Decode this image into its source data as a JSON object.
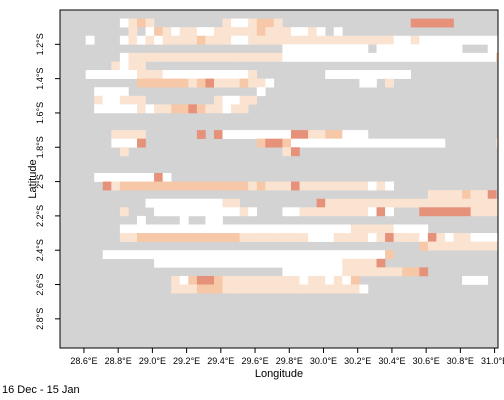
{
  "chart_data": {
    "type": "heatmap",
    "xlabel": "Longitude",
    "ylabel": "Latitude",
    "xlim": [
      28.46,
      31.02
    ],
    "ylim": [
      -2.97,
      -1.0
    ],
    "x_ticks": [
      {
        "value": 28.6,
        "label": "28.6°E"
      },
      {
        "value": 28.8,
        "label": "28.8°E"
      },
      {
        "value": 29.0,
        "label": "29.0°E"
      },
      {
        "value": 29.2,
        "label": "29.2°E"
      },
      {
        "value": 29.4,
        "label": "29.4°E"
      },
      {
        "value": 29.6,
        "label": "29.6°E"
      },
      {
        "value": 29.8,
        "label": "29.8°E"
      },
      {
        "value": 30.0,
        "label": "30.0°E"
      },
      {
        "value": 30.2,
        "label": "30.2°E"
      },
      {
        "value": 30.4,
        "label": "30.4°E"
      },
      {
        "value": 30.6,
        "label": "30.6°E"
      },
      {
        "value": 30.8,
        "label": "30.8°E"
      },
      {
        "value": 31.0,
        "label": "31.0°E"
      }
    ],
    "y_ticks": [
      {
        "value": -1.2,
        "label": "1.2°S"
      },
      {
        "value": -1.4,
        "label": "1.4°S"
      },
      {
        "value": -1.6,
        "label": "1.6°S"
      },
      {
        "value": -1.8,
        "label": "1.8°S"
      },
      {
        "value": -2.0,
        "label": "2°S"
      },
      {
        "value": -2.2,
        "label": "2.2°S"
      },
      {
        "value": -2.4,
        "label": "2.4°S"
      },
      {
        "value": -2.6,
        "label": "2.6°S"
      },
      {
        "value": -2.8,
        "label": "2.8°S"
      }
    ],
    "grid": false,
    "cell_origin": [
      28.46,
      -1.0
    ],
    "cell_size": 0.05,
    "category_colors": {
      "G": "#d3d3d3",
      "W": "#ffffff",
      "L": "#fbe3d1",
      "M": "#f6c8a8",
      "D": "#e6917a"
    },
    "rows": [
      "GGGGGGGGGGGGGGGGGGGGGGGGGGGGGGGGGGGGGGGGGGGGGGGGGGG",
      "GGGGGGGWLMLGGGGGGGGLWWLMMLGGGGGGGGGGGGGGGDDDDDGGGGGGGGGGGGGGGGG",
      "GGGGGGGGLGWMLWLLWWLLLLLMLLLWWLWGWGGGGGGGGGGGGGGGGGGGGGGWLMDDDDDDDDDDG",
      "GGGWGGGWLWLWLLLLMLLLWWLLLLLLLLLLLLLLLLLWWLWWWWWWWWWWWWWWGGGGGGGGGGGGGG",
      "GGGGGGGGGGGGGGGGGGGGGGGGGGWWWWWWWWWWGWWWWWWWWWWGGGWWGGGGGGGGGGGGGGGGGG",
      "GGGGGGGWLLLLLLLLLLLLLLLLLLWWWWWWWWWWWWWWWWWWWWWWWWWMLLLGGGGGGGGGGGGGGG",
      "GGGGGGLWLLGGGGGGGGGGGGGGGGGGGGGGGGGGGGGGGGGGGGGGGGGGGMLGGGGGGGGGGGGGGG",
      "GGGWWWWWWLLLWWWWWWWWWWLGGGGGGGGWWWWWWWWWWGGGGGGGGGGGGGMLMGGGGGGGGGGGGG",
      "GGGGGGGGGMMMMMMLMDLLLMLLWGGGGGGGGGGWWGLGGGGGGGGGGGGGGGGGGGGGGGGGGGGGGG",
      "GGGGWWWWGGGGGGGGGGGGGGGWGGGGGGGGGGGGGGGGGGGGGGGGGGGGGGWWWWWLLLLLLWWWWG",
      "GGGGLWWLLLGGGGGGGGLWWLLGGGGGGGGGGGGGGGGGGGGGGGGGGGGGGGGGGGGGGGGGGGGGGG",
      "GGGGWWWWWLWLLMMDMLLWLLGGGGGGGGGGGGGGGGGGGGGGGGGGGGGGGGDGGGGGGGGGGGGGGG",
      "GGGGGGGGGGGGGGGGGGGGGGGGGGGGGGGGGGGGGGGGGGGGGGGGGGGGGGGGGGGGGGGGGGGGGG",
      "GGGGGGGGGGGGGGGGGGGGGGGGGGGGGGGGGGGGGGGGGGGGGGGGGGGGGGGGGGGGGGGGGGGGGG",
      "GGGGGGLLLLGGGGGGDGDWWWWWWWWDDLLMMWWWGGGGGGGGGGGGGGGGGGGGGGGGGGGGGGGGGG",
      "GGGGGGWWWDGGGGGGGGGGGGGMDDMWWWWWWWWWWWWWWWWWWGGGGGGLLLLWWWWWWWWWWWWWWW",
      "GGGGGGGLGGGGGGGGGGGGGGGGGGLDGGGGGGGGGGGGGGGGGGGGGGGGGGGGGGGGGGGGGGGGGG",
      "GGGGGGGGGGGGGGGGGGGGGGGGGGGGGGGGGGGGGGGGGGGGGGGGGGGGLLLLLWGGGGGGGGGGGG",
      "GGGGGGGGGGGGGGGGGGGGGGGGGGGGGGGGGGGGGGGGGGGGGGGGGGGGGGGGGGGGGGGGGGGGGG",
      "GGGGWWWWWWWDWGGGGGGGGGGGGGGGGGGGGGGGGGGGGGGGGGGGGGGGGGGGGGGGGGGGGGGGGG",
      "GGGGGDLMMMMMMMMMMMMMMMLMLLLDLLLLLLLLWLWGGGGGGGGGGGGGGGGGGGGGGGGGGGGGGG",
      "GGGGGGGGGGGGGGGGGGGGGGGGGGGGGGGGGGGGGGGGGGGLLLLMLLDGGGGGGGGGGGGGDLDLLDG",
      "GGGGGGGGGGWWWWWWWWWLLGGGGGGGGGDLLLLLLLLLLLLLLLLLLLLLLLLLWWWWWWWWWWWWWWW",
      "GGGGGGGLGGGWWWWWWWWWWLWGGGWWLLLLLLLLWDWGGGDDDDDDLLLLLLLLLGGGGGGGGGGGGGGG",
      "GGGGGGGGGWGGGGWGGWWGGGGGGGGGGGGGGGGGGGGGGGGGGGGGGGGGGGGGGGGGGGGGGGGGGG",
      "GGGGGGGWWWWWWWWWWWWWWWWWWWWWWWWWWWLLLLLWWWWGGGGGGGGGGGGGGGGGGGGGGGGGGG",
      "GGGGGGGLLMMMMMMMMMMMMLLLLLLLLWWWLLLLWLDLLLWDLWLLWWWWWWWWWWWWWWWWGGGGGGG",
      "GGGGGGGGGGGGGGGGGGGGGGGGGGGGGGGGGGGGGGGGGGMLLLLLLLLLLLDDMDDDDDDDDDDDDDG",
      "GGGGGWWWWWWWWWWWWWWWWWWWWWWWWWWWWWWWWWMGGGGGGGGGGGGGGGGGGGGGGGGGGGGGGG",
      "GGGGGGGGGGGWWWWWWWWWWWWWWWWWWWWWWLLLLDGGGGGGGGGGGGGGGDGGGGGGGGGGGGGGGG",
      "GGGGGGGGGGGGGGGGGGGGGGGGGGWWWWWWWLLLLLLLMMDGGGGGGGGGGGGGGGGGGGGGGGGGGGGG",
      "GGGGGGGGGGGGGLWMDDMLLLLLLLLLWLLWLWMGGGGGGGGGGGGWWWGGGGGGGGGGGGGGGGGGGGG",
      "GGGGGGGGGGGGGLLLMMMLLLLLLLLLLLLLLLLWGGGGGGGGGGGGGGGGGGGGGGGGGGGGGGGGGGG",
      "GGGGGGGGGGGGGGGGGGGGGGGGGGGGGGGGGGGGGGGGGGGGGGGGGGGGGGGGGGGGGGGGGGGGGGG",
      "GGGGGGGGGGGGGGGGGGGGGGGGGGGGGGGGGGGGGGGGGGGGGGGGGGGGGGGGGGGGGGGGGGGGGGG"
    ]
  },
  "period_label": "16 Dec  - 15 Jan"
}
